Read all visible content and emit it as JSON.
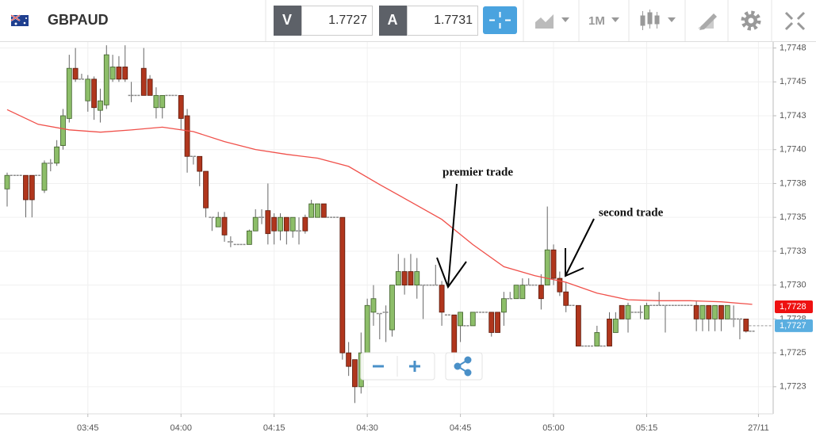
{
  "toolbar": {
    "symbol": "GBPAUD",
    "bid_label": "V",
    "bid": "1.7727",
    "ask_label": "A",
    "ask": "1.7731",
    "timeframe": "1M"
  },
  "chart_data": {
    "type": "candlestick",
    "categories": [
      "03:32",
      "03:33",
      "03:34",
      "03:35",
      "03:36",
      "03:37",
      "03:38",
      "03:39",
      "03:40",
      "03:41",
      "03:42",
      "03:43",
      "03:44",
      "03:45",
      "03:46",
      "03:47",
      "03:48",
      "03:49",
      "03:50",
      "03:51",
      "03:52",
      "03:53",
      "03:54",
      "03:55",
      "03:56",
      "03:57",
      "03:58",
      "03:59",
      "04:00",
      "04:01",
      "04:02",
      "04:03",
      "04:04",
      "04:05",
      "04:06",
      "04:07",
      "04:08",
      "04:09",
      "04:10",
      "04:11",
      "04:12",
      "04:13",
      "04:14",
      "04:15",
      "04:16",
      "04:17",
      "04:18",
      "04:19",
      "04:20",
      "04:21",
      "04:22",
      "04:23",
      "04:24",
      "04:25",
      "04:26",
      "04:27",
      "04:28",
      "04:29",
      "04:30",
      "04:31",
      "04:32",
      "04:33",
      "04:34",
      "04:35",
      "04:36",
      "04:37",
      "04:38",
      "04:39",
      "04:40",
      "04:41",
      "04:42",
      "04:43",
      "04:44",
      "04:45",
      "04:46",
      "04:47",
      "04:48",
      "04:49",
      "04:50",
      "04:51",
      "04:52",
      "04:53",
      "04:54",
      "04:55",
      "04:56",
      "04:57",
      "04:58",
      "04:59",
      "05:00",
      "05:01",
      "05:02",
      "05:03",
      "05:04",
      "05:05",
      "05:06",
      "05:07",
      "05:08",
      "05:09",
      "05:10",
      "05:11",
      "05:12",
      "05:13",
      "05:14",
      "05:15",
      "05:16",
      "05:17",
      "05:18",
      "05:19",
      "05:20",
      "05:21",
      "05:22",
      "05:23",
      "05:24",
      "05:25",
      "05:26",
      "05:27",
      "05:28",
      "05:29",
      "05:30",
      "05:31",
      "05:32"
    ],
    "open": [
      1.77371,
      1.77381,
      1.77381,
      1.77381,
      1.77381,
      1.77381,
      1.7737,
      1.7739,
      1.7739,
      1.77403,
      1.77423,
      1.7746,
      1.77452,
      1.77436,
      1.77452,
      1.77429,
      1.77433,
      1.77452,
      1.77461,
      1.77461,
      1.7744,
      1.7744,
      1.7746,
      1.77452,
      1.77431,
      1.77431,
      1.7744,
      1.7744,
      1.7744,
      1.77425,
      1.77395,
      1.77395,
      1.77384,
      1.7735,
      1.77343,
      1.7735,
      1.77332,
      1.7733,
      1.7733,
      1.7733,
      1.7734,
      1.7735,
      1.77355,
      1.7735,
      1.7734,
      1.7735,
      1.7734,
      1.7734,
      1.7735,
      1.7735,
      1.7735,
      1.7736,
      1.7735,
      1.7735,
      1.7735,
      1.7725,
      1.77245,
      1.77225,
      1.7725,
      1.7728,
      1.77279,
      1.7728,
      1.77267,
      1.773,
      1.7731,
      1.7731,
      1.773,
      1.773,
      1.773,
      1.773,
      1.773,
      1.77278,
      1.77278,
      1.7727,
      1.7727,
      1.7727,
      1.7728,
      1.7728,
      1.7728,
      1.7728,
      1.7728,
      1.7729,
      1.7729,
      1.7729,
      1.773,
      1.773,
      1.773,
      1.773,
      1.77326,
      1.77305,
      1.77295,
      1.77285,
      1.77285,
      1.77255,
      1.77255,
      1.77255,
      1.77255,
      1.77275,
      1.77265,
      1.77285,
      1.77275,
      1.7728,
      1.7728,
      1.77275,
      1.77285,
      1.77285,
      1.77285,
      1.77285,
      1.77285,
      1.77285,
      1.77285,
      1.77285,
      1.77275,
      1.77285,
      1.77275,
      1.77285,
      1.77275,
      1.77275,
      1.77275,
      1.77275,
      1.77266
    ],
    "high": [
      1.77383,
      1.77381,
      1.77381,
      1.77381,
      1.77381,
      1.77381,
      1.77392,
      1.77393,
      1.77407,
      1.7743,
      1.7747,
      1.77475,
      1.77456,
      1.77455,
      1.77454,
      1.77445,
      1.77477,
      1.7747,
      1.77469,
      1.77477,
      1.7745,
      1.7744,
      1.77475,
      1.77455,
      1.77446,
      1.7744,
      1.7744,
      1.7744,
      1.7744,
      1.7743,
      1.77395,
      1.77395,
      1.77384,
      1.7735,
      1.77354,
      1.77354,
      1.77336,
      1.7733,
      1.7733,
      1.77341,
      1.77356,
      1.77356,
      1.77375,
      1.77353,
      1.77353,
      1.7735,
      1.7735,
      1.7735,
      1.77352,
      1.77363,
      1.7736,
      1.7736,
      1.7735,
      1.7735,
      1.7735,
      1.77258,
      1.77245,
      1.77265,
      1.7729,
      1.773,
      1.77279,
      1.77285,
      1.773,
      1.77323,
      1.7732,
      1.77323,
      1.7732,
      1.773,
      1.773,
      1.77315,
      1.77303,
      1.77278,
      1.77278,
      1.7728,
      1.7727,
      1.7728,
      1.7728,
      1.7728,
      1.7728,
      1.7728,
      1.77295,
      1.77295,
      1.773,
      1.77305,
      1.77305,
      1.773,
      1.77308,
      1.77358,
      1.7733,
      1.7731,
      1.77302,
      1.77285,
      1.77285,
      1.77255,
      1.77255,
      1.7727,
      1.77255,
      1.7728,
      1.7728,
      1.77285,
      1.77287,
      1.7728,
      1.77285,
      1.77287,
      1.77285,
      1.77295,
      1.77285,
      1.77285,
      1.77285,
      1.77285,
      1.77285,
      1.77288,
      1.77285,
      1.77285,
      1.77285,
      1.77285,
      1.77285,
      1.77285,
      1.77275,
      1.77275,
      1.77266
    ],
    "low": [
      1.77358,
      1.77381,
      1.77381,
      1.7735,
      1.7735,
      1.77381,
      1.77368,
      1.77384,
      1.77388,
      1.774,
      1.7742,
      1.7745,
      1.77452,
      1.77428,
      1.77422,
      1.7742,
      1.7743,
      1.7745,
      1.7745,
      1.7745,
      1.77435,
      1.7744,
      1.7744,
      1.7744,
      1.77423,
      1.77423,
      1.7744,
      1.7744,
      1.77415,
      1.77383,
      1.77389,
      1.77373,
      1.7735,
      1.7734,
      1.77343,
      1.77332,
      1.77328,
      1.7733,
      1.7733,
      1.7733,
      1.7734,
      1.77345,
      1.7733,
      1.7733,
      1.77333,
      1.7733,
      1.77335,
      1.7733,
      1.77338,
      1.7735,
      1.7735,
      1.7735,
      1.7735,
      1.7735,
      1.77245,
      1.77233,
      1.77213,
      1.7722,
      1.7725,
      1.7727,
      1.7726,
      1.77258,
      1.77262,
      1.773,
      1.77293,
      1.773,
      1.7729,
      1.77275,
      1.773,
      1.773,
      1.7727,
      1.77278,
      1.77243,
      1.77258,
      1.7727,
      1.7727,
      1.7728,
      1.7728,
      1.77262,
      1.77265,
      1.7727,
      1.7729,
      1.7729,
      1.7729,
      1.773,
      1.773,
      1.77282,
      1.773,
      1.773,
      1.77292,
      1.7728,
      1.77285,
      1.77255,
      1.77255,
      1.77255,
      1.77255,
      1.77255,
      1.77255,
      1.77265,
      1.77275,
      1.77265,
      1.7728,
      1.77275,
      1.77275,
      1.77285,
      1.77285,
      1.77265,
      1.77285,
      1.77285,
      1.77285,
      1.77285,
      1.77266,
      1.77266,
      1.77266,
      1.77266,
      1.77266,
      1.77275,
      1.77269,
      1.7726,
      1.77265,
      1.77266
    ],
    "close": [
      1.77381,
      1.77381,
      1.77381,
      1.77363,
      1.77363,
      1.77381,
      1.7739,
      1.7739,
      1.77402,
      1.77425,
      1.7746,
      1.77452,
      1.77452,
      1.77452,
      1.77431,
      1.77436,
      1.7747,
      1.77461,
      1.77452,
      1.77452,
      1.7744,
      1.7744,
      1.7744,
      1.7744,
      1.7744,
      1.7744,
      1.7744,
      1.7744,
      1.77423,
      1.77395,
      1.77395,
      1.77384,
      1.77357,
      1.7735,
      1.7735,
      1.77337,
      1.77332,
      1.7733,
      1.7733,
      1.7734,
      1.7735,
      1.7735,
      1.77338,
      1.7734,
      1.7735,
      1.7734,
      1.7735,
      1.7734,
      1.7734,
      1.7736,
      1.7736,
      1.7735,
      1.7735,
      1.7735,
      1.7725,
      1.7724,
      1.77225,
      1.7725,
      1.77285,
      1.7729,
      1.77279,
      1.7728,
      1.773,
      1.7731,
      1.773,
      1.773,
      1.7731,
      1.773,
      1.773,
      1.773,
      1.7728,
      1.77278,
      1.7725,
      1.7728,
      1.7727,
      1.7728,
      1.7728,
      1.7728,
      1.77265,
      1.77265,
      1.7729,
      1.7729,
      1.773,
      1.773,
      1.773,
      1.773,
      1.7729,
      1.77326,
      1.77305,
      1.77295,
      1.77285,
      1.77285,
      1.77255,
      1.77255,
      1.77255,
      1.77265,
      1.77255,
      1.77255,
      1.77275,
      1.77275,
      1.77285,
      1.7728,
      1.7728,
      1.77285,
      1.77285,
      1.77285,
      1.77285,
      1.77285,
      1.77285,
      1.77285,
      1.77285,
      1.77275,
      1.77285,
      1.77275,
      1.77285,
      1.77275,
      1.77285,
      1.77275,
      1.77275,
      1.77266,
      1.77266
    ],
    "up_color": "#8dbe69",
    "down_color": "#b0361d",
    "flat_color": "#8a8a8a",
    "moving_average": {
      "color": "#f0504a",
      "x": [
        "03:32",
        "03:37",
        "03:42",
        "03:47",
        "03:52",
        "03:57",
        "04:02",
        "04:07",
        "04:12",
        "04:17",
        "04:22",
        "04:27",
        "04:32",
        "04:37",
        "04:42",
        "04:47",
        "04:52",
        "04:57",
        "05:02",
        "05:07",
        "05:12",
        "05:17",
        "05:22",
        "05:27",
        "05:32"
      ],
      "values": [
        1.774295,
        1.774187,
        1.774146,
        1.774129,
        1.774145,
        1.774166,
        1.774133,
        1.774059,
        1.774001,
        1.773965,
        1.773937,
        1.773876,
        1.773742,
        1.773614,
        1.773485,
        1.773299,
        1.773136,
        1.773069,
        1.773021,
        1.772941,
        1.772892,
        1.772885,
        1.772885,
        1.772877,
        1.772858
      ]
    },
    "ylim": [
      1.77205,
      1.7748
    ],
    "yticks": [
      {
        "value": 1.77225,
        "label": "1,7723"
      },
      {
        "value": 1.7725,
        "label": "1,7725"
      },
      {
        "value": 1.77275,
        "label": "1,7728"
      },
      {
        "value": 1.773,
        "label": "1,7730"
      },
      {
        "value": 1.77325,
        "label": "1,7733"
      },
      {
        "value": 1.7735,
        "label": "1,7735"
      },
      {
        "value": 1.77375,
        "label": "1,7738"
      },
      {
        "value": 1.774,
        "label": "1,7740"
      },
      {
        "value": 1.77425,
        "label": "1,7743"
      },
      {
        "value": 1.7745,
        "label": "1,7745"
      },
      {
        "value": 1.77475,
        "label": "1,7748"
      }
    ],
    "xticks": [
      "03:45",
      "04:00",
      "04:15",
      "04:30",
      "04:45",
      "05:00",
      "05:15",
      {
        "value": "05:33",
        "label": "27/11"
      }
    ],
    "grid": true,
    "price_tags": [
      {
        "label": "1,7728",
        "value": 1.77284,
        "color": "#ee1111"
      },
      {
        "label": "1,7727",
        "value": 1.7727,
        "color": "#5aaee0"
      }
    ],
    "annotations": [
      {
        "text": "premier trade"
      },
      {
        "text": "second trade"
      }
    ]
  }
}
